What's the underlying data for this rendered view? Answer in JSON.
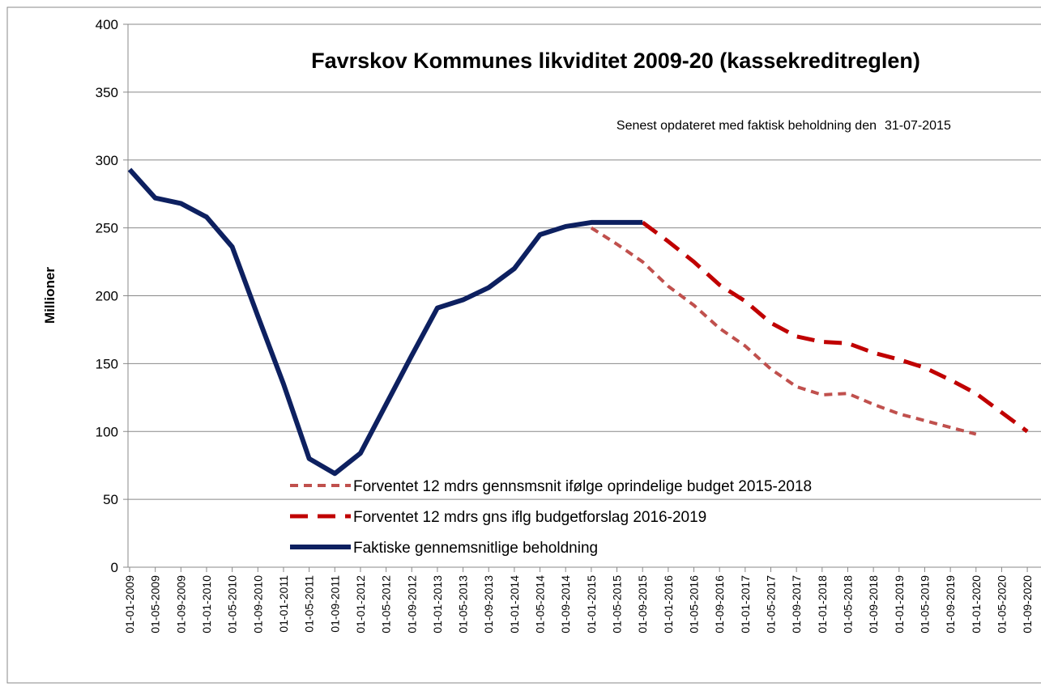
{
  "chart_data": {
    "type": "line",
    "title": "Favrskov Kommunes likviditet 2009-20 (kassekreditreglen)",
    "subtitle": "Senest opdateret med faktisk beholdning den",
    "update_date": "31-07-2015",
    "y_label": "Millioner",
    "categories": [
      "01-01-2009",
      "01-05-2009",
      "01-09-2009",
      "01-01-2010",
      "01-05-2010",
      "01-09-2010",
      "01-01-2011",
      "01-05-2011",
      "01-09-2011",
      "01-01-2012",
      "01-05-2012",
      "01-09-2012",
      "01-01-2013",
      "01-05-2013",
      "01-09-2013",
      "01-01-2014",
      "01-05-2014",
      "01-09-2014",
      "01-01-2015",
      "01-05-2015",
      "01-09-2015",
      "01-01-2016",
      "01-05-2016",
      "01-09-2016",
      "01-01-2017",
      "01-05-2017",
      "01-09-2017",
      "01-01-2018",
      "01-05-2018",
      "01-09-2018",
      "01-01-2019",
      "01-05-2019",
      "01-09-2019",
      "01-01-2020",
      "01-05-2020",
      "01-09-2020"
    ],
    "series": [
      {
        "name": "Forventet 12 mdrs gennsmsnit ifølge oprindelige budget 2015-2018",
        "color": "#c0504d",
        "dash": "short",
        "values": [
          null,
          null,
          null,
          null,
          null,
          null,
          null,
          null,
          null,
          null,
          null,
          null,
          null,
          null,
          null,
          null,
          null,
          null,
          250,
          238,
          225,
          207,
          193,
          176,
          163,
          146,
          133,
          127,
          128,
          120,
          113,
          108,
          103,
          98,
          null,
          null
        ]
      },
      {
        "name": "Forventet 12 mdrs gns iflg budgetforslag 2016-2019",
        "color": "#c00000",
        "dash": "long",
        "values": [
          null,
          null,
          null,
          null,
          null,
          null,
          null,
          null,
          null,
          null,
          null,
          null,
          null,
          null,
          null,
          null,
          null,
          null,
          null,
          null,
          254,
          240,
          225,
          208,
          196,
          180,
          170,
          166,
          165,
          158,
          153,
          147,
          138,
          128,
          114,
          100
        ]
      },
      {
        "name": "Faktiske gennemsnitlige beholdning",
        "color": "#0d2060",
        "dash": "solid",
        "values": [
          293,
          272,
          268,
          258,
          236,
          185,
          135,
          80,
          69,
          84,
          120,
          156,
          191,
          197,
          206,
          220,
          245,
          251,
          254,
          254,
          254,
          null,
          null,
          null,
          null,
          null,
          null,
          null,
          null,
          null,
          null,
          null,
          null,
          null,
          null,
          null
        ]
      }
    ],
    "ylim": [
      0,
      400
    ],
    "yticks": [
      0,
      50,
      100,
      150,
      200,
      250,
      300,
      350,
      400
    ],
    "grid": true
  }
}
